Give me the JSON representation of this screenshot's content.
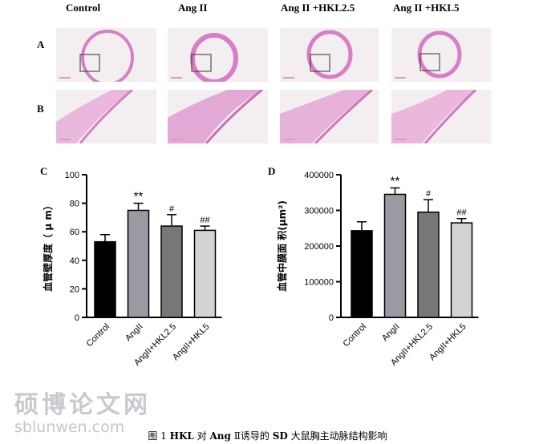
{
  "figure": {
    "column_headers": [
      "Control",
      "Ang II",
      "Ang II +HKL2.5",
      "Ang II +HKL5"
    ],
    "row_labels": [
      "A",
      "B"
    ],
    "colors": {
      "tissue_pink": "#d87ec6",
      "tissue_light": "#e9b8dc",
      "background": "#f3eef0"
    }
  },
  "panel_c": {
    "letter": "C",
    "chart_data": {
      "type": "bar",
      "categories": [
        "Control",
        "AngII",
        "AngII+HKL2.5",
        "AngII+HKL5"
      ],
      "values": [
        53,
        75,
        64,
        61
      ],
      "errors": [
        5,
        5,
        8,
        3
      ],
      "significance": [
        "",
        "**",
        "#",
        "##"
      ],
      "bar_colors": [
        "#000000",
        "#9a9aa2",
        "#777777",
        "#d3d3d3"
      ],
      "ylabel": "血管壁厚度（ μ m）",
      "ylim": [
        0,
        100
      ],
      "yticks": [
        "0",
        "20",
        "40",
        "60",
        "80",
        "100"
      ]
    }
  },
  "panel_d": {
    "letter": "D",
    "chart_data": {
      "type": "bar",
      "categories": [
        "Control",
        "AngII",
        "AngII+HKL2.5",
        "AngII+HKL5"
      ],
      "values": [
        243000,
        345000,
        295000,
        265000
      ],
      "errors": [
        25000,
        18000,
        35000,
        12000
      ],
      "significance": [
        "",
        "**",
        "#",
        "##"
      ],
      "bar_colors": [
        "#000000",
        "#9a9aa2",
        "#777777",
        "#d3d3d3"
      ],
      "ylabel": "血管中膜面 积(μm²)",
      "ylim": [
        0,
        400000
      ],
      "yticks": [
        "0",
        "100000",
        "200000",
        "300000",
        "400000"
      ]
    }
  },
  "watermark": {
    "chinese": "硕博论文网",
    "url": "sblunwen.com"
  },
  "caption": {
    "prefix": "图 1 ",
    "hkl": "HKL",
    "mid1": " 对 ",
    "ang": "Ang",
    "mid2": " Ⅱ诱导的 ",
    "sd": "SD",
    "suffix": " 大鼠胸主动脉结构影响"
  }
}
